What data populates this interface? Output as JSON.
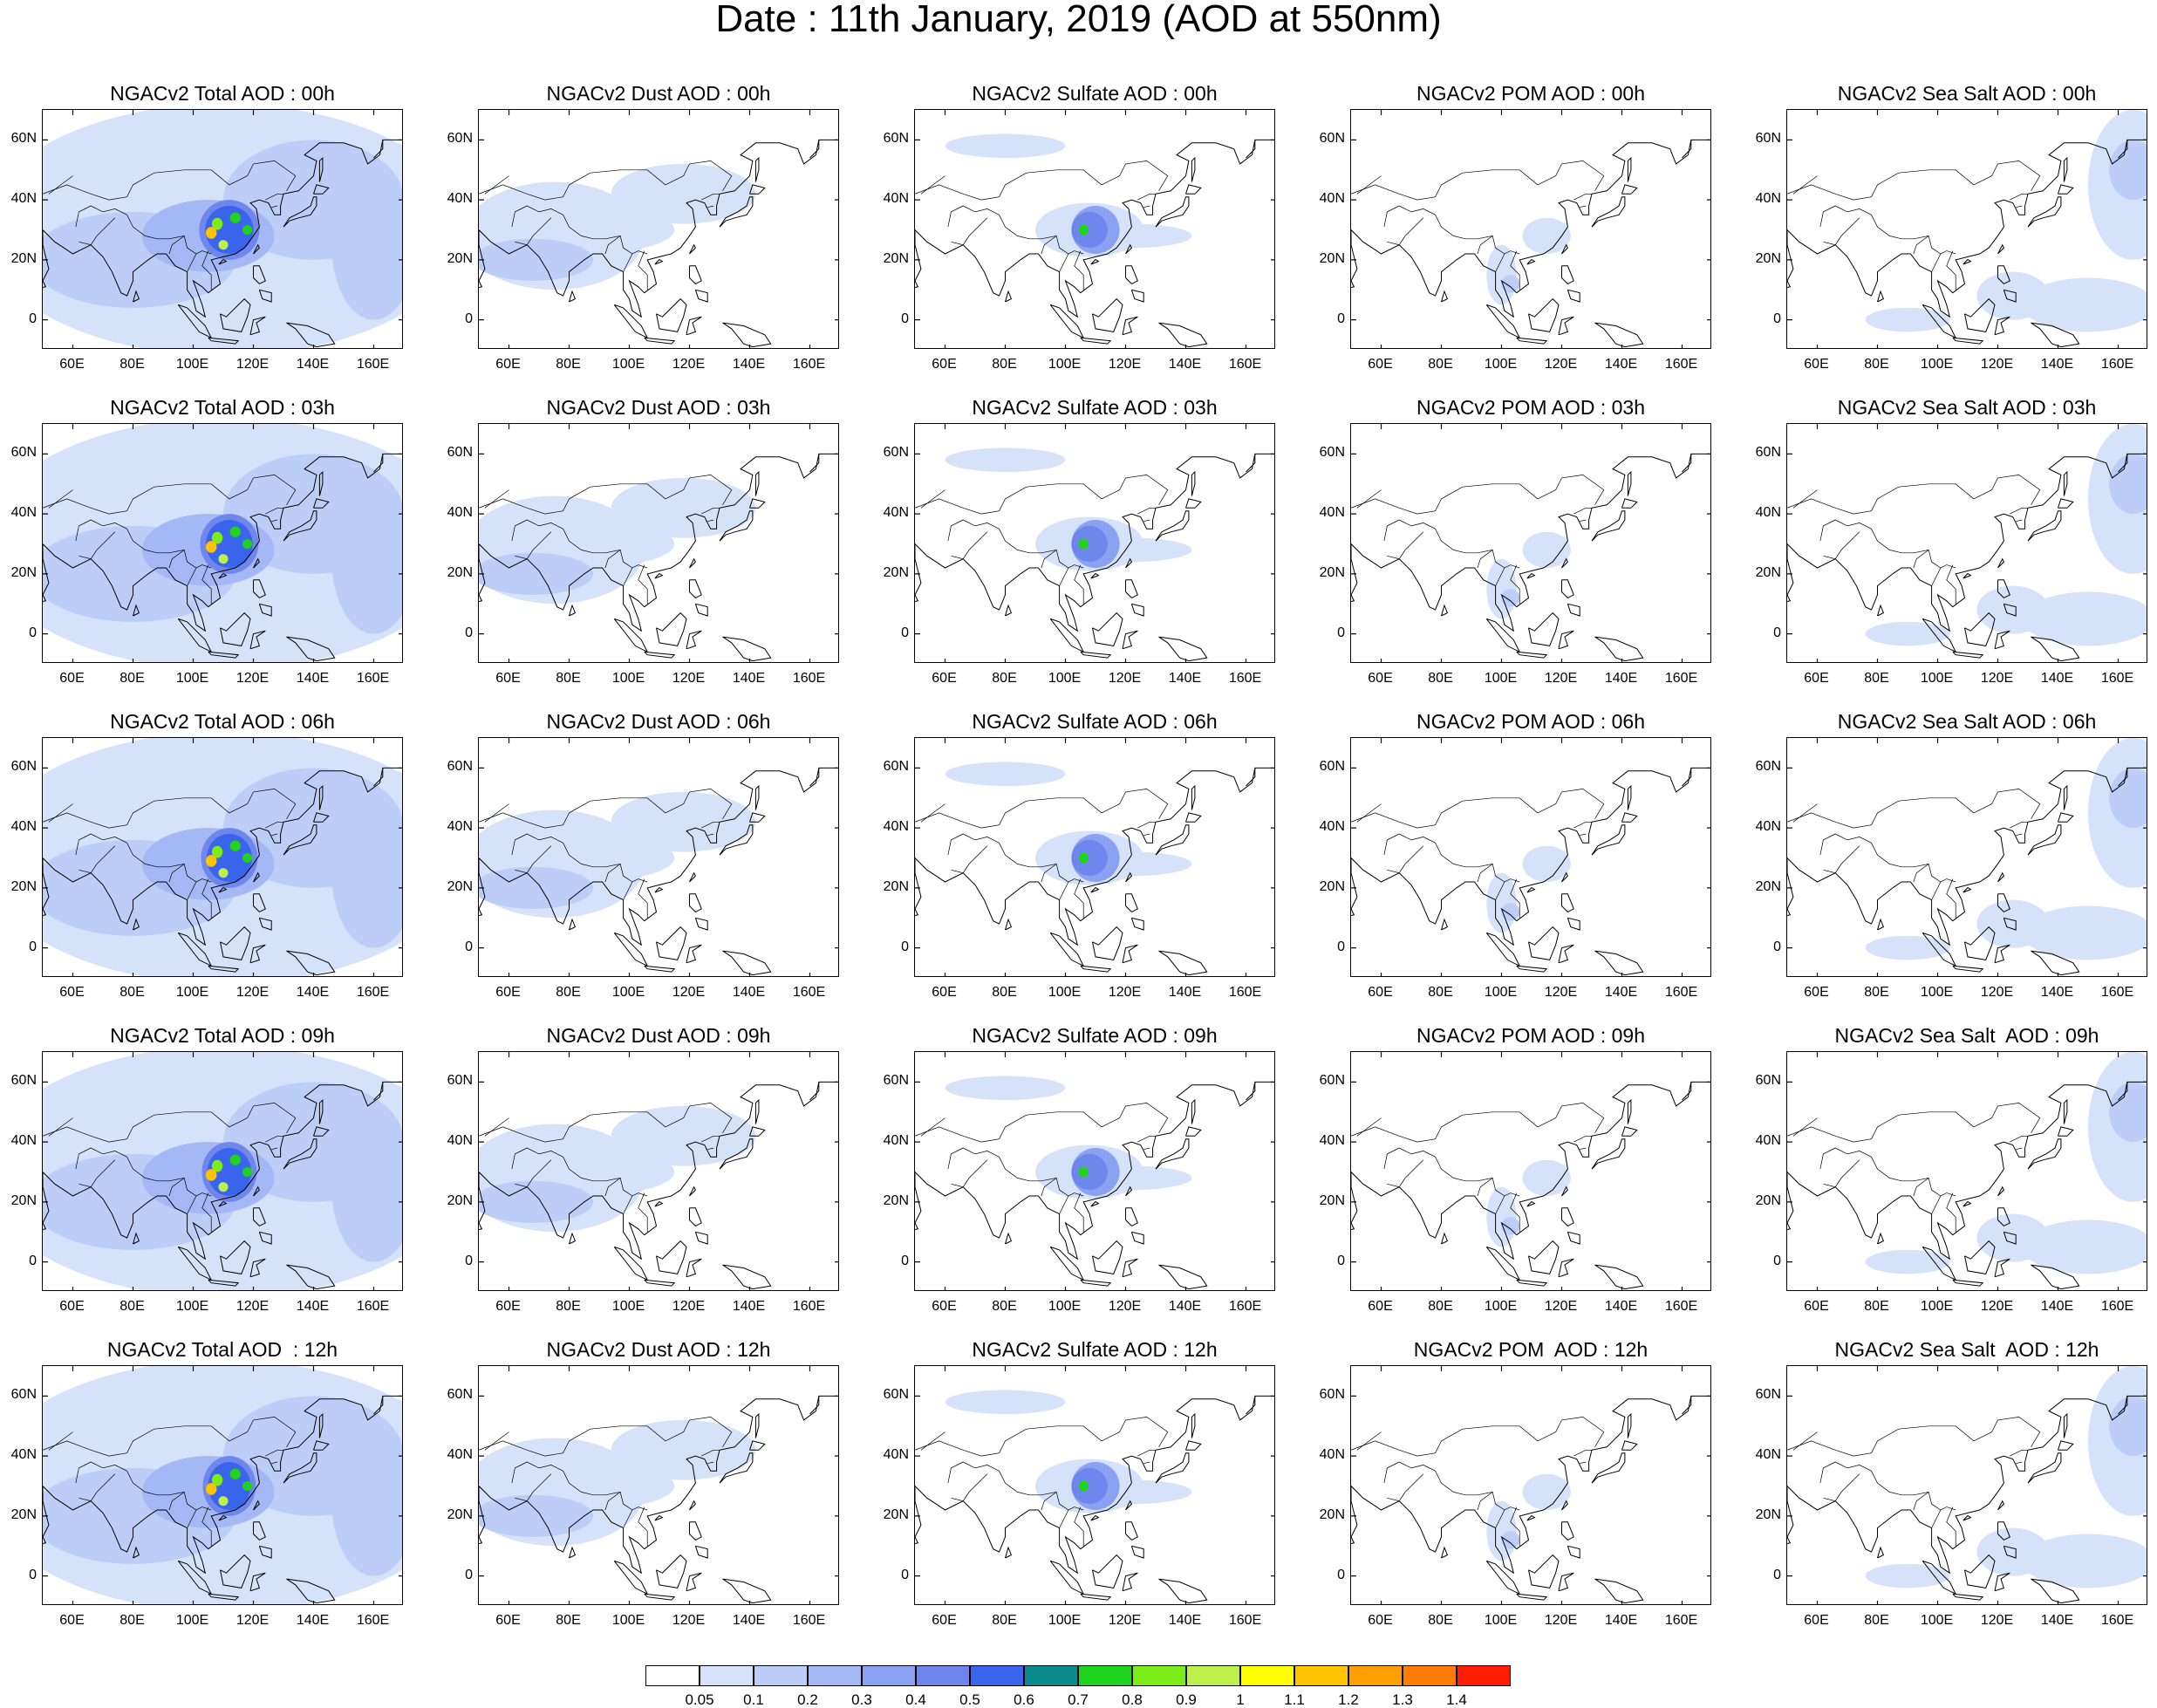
{
  "title": "Date : 11th January, 2019 (AOD at 550nm)",
  "rows": [
    "00h",
    "03h",
    "06h",
    "09h",
    "12h"
  ],
  "columns": [
    "total",
    "dust",
    "sulfate",
    "pom",
    "seasalt"
  ],
  "panel_titles": [
    [
      "NGACv2 Total AOD : 00h",
      "NGACv2 Dust AOD : 00h",
      "NGACv2 Sulfate AOD : 00h",
      "NGACv2 POM AOD : 00h",
      "NGACv2 Sea Salt AOD : 00h"
    ],
    [
      "NGACv2 Total AOD : 03h",
      "NGACv2 Dust AOD : 03h",
      "NGACv2 Sulfate AOD : 03h",
      "NGACv2 POM AOD : 03h",
      "NGACv2 Sea Salt AOD : 03h"
    ],
    [
      "NGACv2 Total AOD : 06h",
      "NGACv2 Dust AOD : 06h",
      "NGACv2 Sulfate AOD : 06h",
      "NGACv2 POM AOD : 06h",
      "NGACv2 Sea Salt AOD : 06h"
    ],
    [
      "NGACv2 Total AOD : 09h",
      "NGACv2 Dust AOD : 09h",
      "NGACv2 Sulfate AOD : 09h",
      "NGACv2 POM AOD : 09h",
      "NGACv2 Sea Salt  AOD : 09h"
    ],
    [
      "NGACv2 Total AOD  : 12h",
      "NGACv2 Dust AOD : 12h",
      "NGACv2 Sulfate AOD : 12h",
      "NGACv2 POM  AOD : 12h",
      "NGACv2 Sea Salt  AOD : 12h"
    ]
  ],
  "lat_labels": [
    "60N",
    "40N",
    "20N",
    "0"
  ],
  "lon_labels": [
    "60E",
    "80E",
    "100E",
    "120E",
    "140E",
    "160E"
  ],
  "map_extent": {
    "lon_min": 50,
    "lon_max": 170,
    "lat_min": -10,
    "lat_max": 70
  },
  "colorbar": {
    "labels": [
      "0.05",
      "0.1",
      "0.2",
      "0.3",
      "0.4",
      "0.5",
      "0.6",
      "0.7",
      "0.8",
      "0.9",
      "1",
      "1.1",
      "1.2",
      "1.3",
      "1.4"
    ],
    "colors": [
      "#ffffff",
      "#d6e2fa",
      "#bccef8",
      "#a3b8f5",
      "#8aa2f1",
      "#6f86ec",
      "#3a64ec",
      "#0a8c8c",
      "#1ed21e",
      "#7ded1a",
      "#bdf04a",
      "#ffff00",
      "#ffc300",
      "#ffa000",
      "#ff7d00",
      "#ff1e00"
    ]
  },
  "coastline_color": "#000000"
}
